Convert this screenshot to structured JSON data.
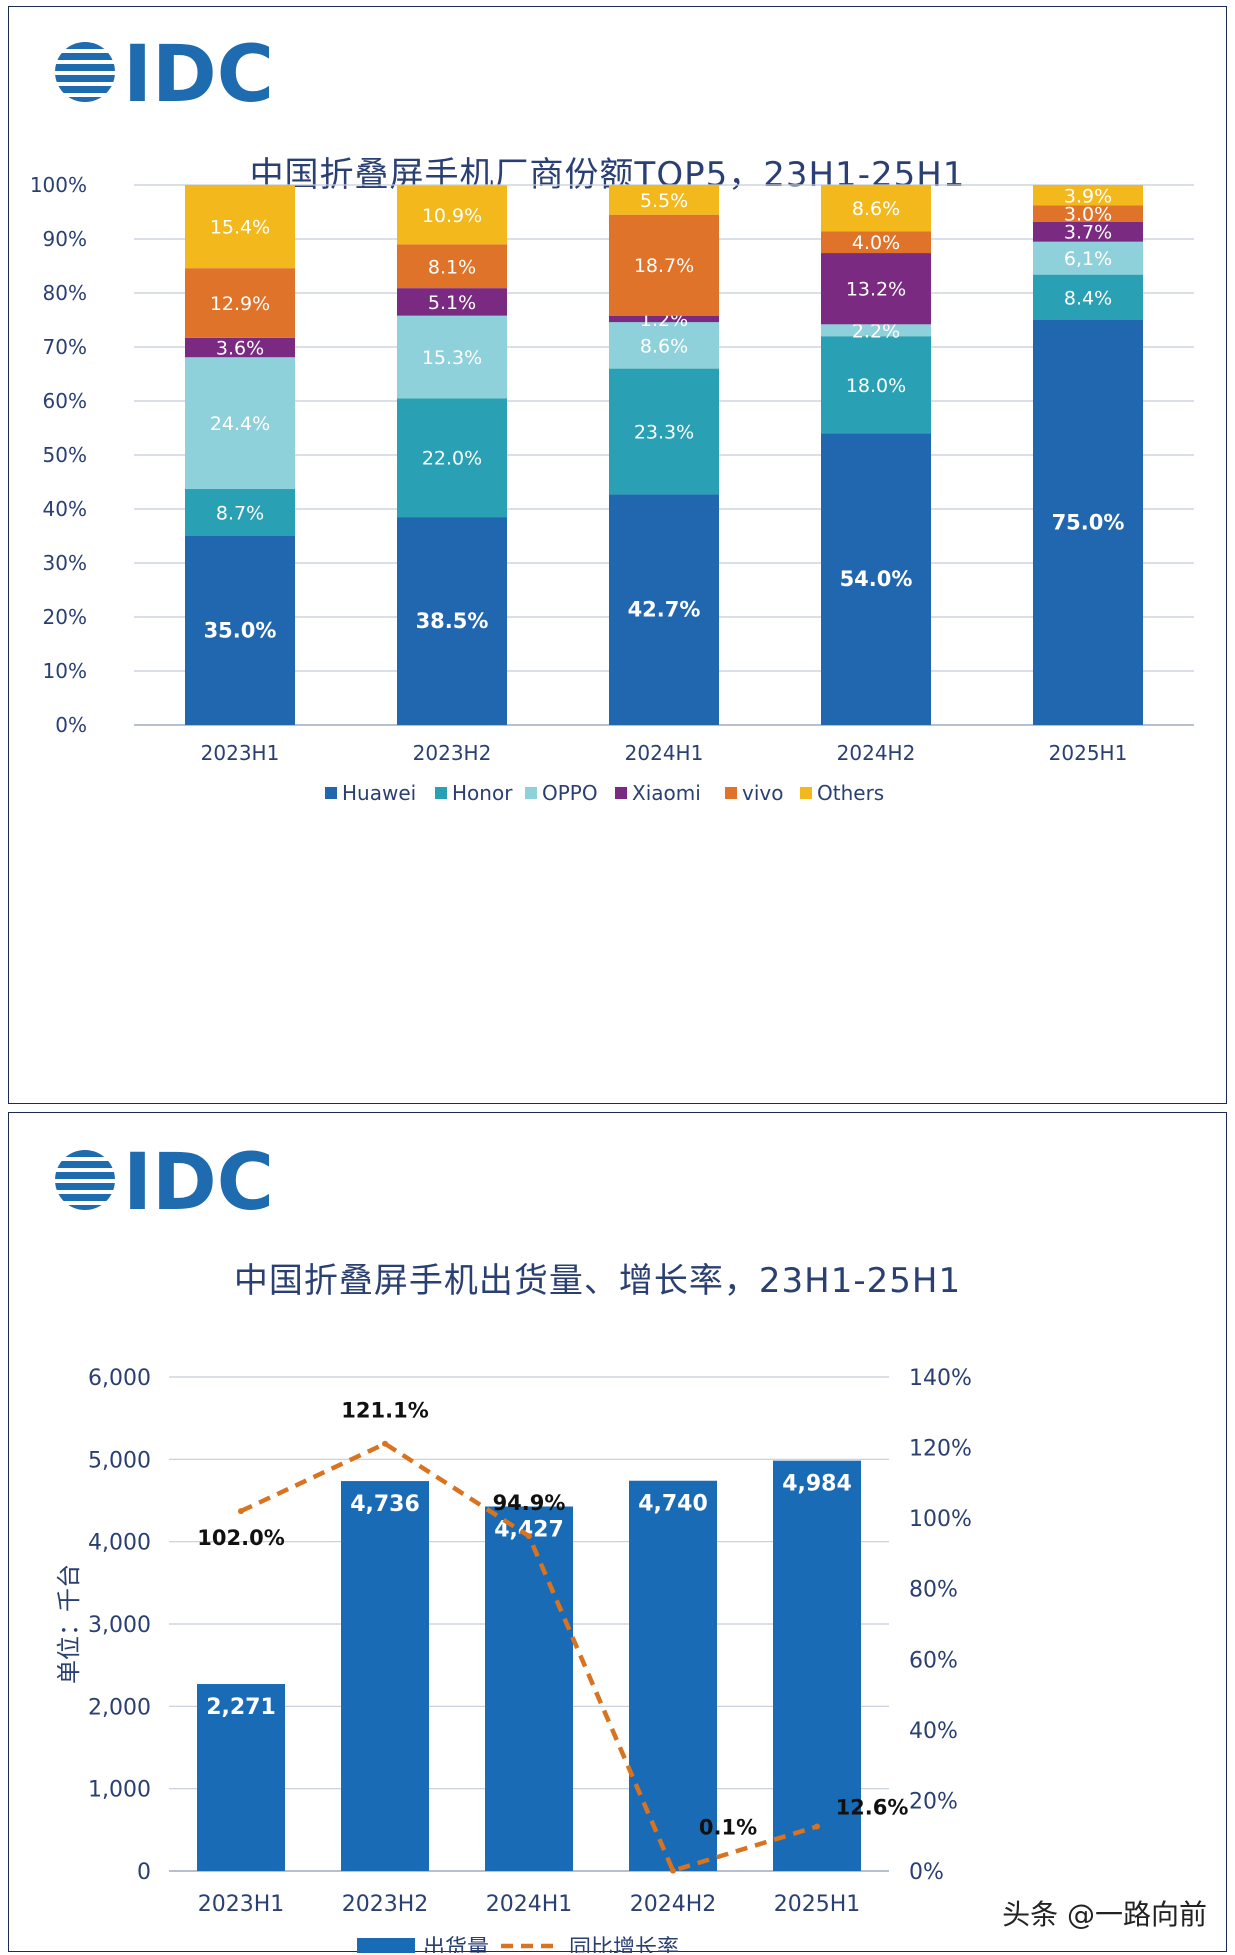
{
  "logo_text": "IDC",
  "colors": {
    "Huawei": "#2167b0",
    "Honor": "#2aa0b4",
    "OPPO": "#8fd1db",
    "Xiaomi": "#7b2a82",
    "vivo": "#e0732a",
    "Others": "#f2b81c",
    "bar2": "#1a6bb5",
    "line2": "#d9731f",
    "axis_text": "#2a3f72"
  },
  "chart_data": [
    {
      "type": "bar",
      "stacked": true,
      "title": "中国折叠屏手机厂商份额TOP5，23H1-25H1",
      "categories": [
        "2023H1",
        "2023H2",
        "2024H1",
        "2024H2",
        "2025H1"
      ],
      "ylim": [
        0,
        100
      ],
      "y_ticks": [
        "0%",
        "10%",
        "20%",
        "30%",
        "40%",
        "50%",
        "60%",
        "70%",
        "80%",
        "90%",
        "100%"
      ],
      "legend_position": "bottom",
      "series": [
        {
          "name": "Huawei",
          "values": [
            35.0,
            38.5,
            42.7,
            54.0,
            75.0
          ],
          "labels": [
            "35.0%",
            "38.5%",
            "42.7%",
            "54.0%",
            "75.0%"
          ]
        },
        {
          "name": "Honor",
          "values": [
            8.7,
            22.0,
            23.3,
            18.0,
            8.4
          ],
          "labels": [
            "8.7%",
            "22.0%",
            "23.3%",
            "18.0%",
            "8.4%"
          ]
        },
        {
          "name": "OPPO",
          "values": [
            24.4,
            15.3,
            8.6,
            2.2,
            6.1
          ],
          "labels": [
            "24.4%",
            "15.3%",
            "8.6%",
            "2.2%",
            "6,1%"
          ]
        },
        {
          "name": "Xiaomi",
          "values": [
            3.6,
            5.1,
            1.2,
            13.2,
            3.7
          ],
          "labels": [
            "3.6%",
            "5.1%",
            "1.2%",
            "13.2%",
            "3.7%"
          ]
        },
        {
          "name": "vivo",
          "values": [
            12.9,
            8.1,
            18.7,
            4.0,
            3.0
          ],
          "labels": [
            "12.9%",
            "8.1%",
            "18.7%",
            "4.0%",
            "3.0%"
          ]
        },
        {
          "name": "Others",
          "values": [
            15.4,
            10.9,
            5.5,
            8.6,
            3.9
          ],
          "labels": [
            "15.4%",
            "10.9%",
            "5.5%",
            "8.6%",
            "3.9%"
          ]
        }
      ]
    },
    {
      "type": "bar",
      "title": "中国折叠屏手机出货量、增长率，23H1-25H1",
      "categories": [
        "2023H1",
        "2023H2",
        "2024H1",
        "2024H2",
        "2025H1"
      ],
      "ylabel": "单位：千台",
      "ylim": [
        0,
        6000
      ],
      "y_ticks": [
        "0",
        "1,000",
        "2,000",
        "3,000",
        "4,000",
        "5,000",
        "6,000"
      ],
      "y2lim": [
        0,
        140
      ],
      "y2_ticks": [
        "0%",
        "20%",
        "40%",
        "60%",
        "80%",
        "100%",
        "120%",
        "140%"
      ],
      "legend_position": "bottom",
      "series": [
        {
          "name": "出货量",
          "type": "bar",
          "values": [
            2271,
            4736,
            4427,
            4740,
            4984
          ],
          "labels": [
            "2,271",
            "4,736",
            "4,427",
            "4,740",
            "4,984"
          ]
        },
        {
          "name": "同比增长率",
          "type": "line",
          "axis": "right",
          "values": [
            102.0,
            121.1,
            94.9,
            0.1,
            12.6
          ],
          "labels": [
            "102.0%",
            "121.1%",
            "94.9%",
            "0.1%",
            "12.6%"
          ]
        }
      ]
    }
  ],
  "watermark": "头条 @一路向前"
}
